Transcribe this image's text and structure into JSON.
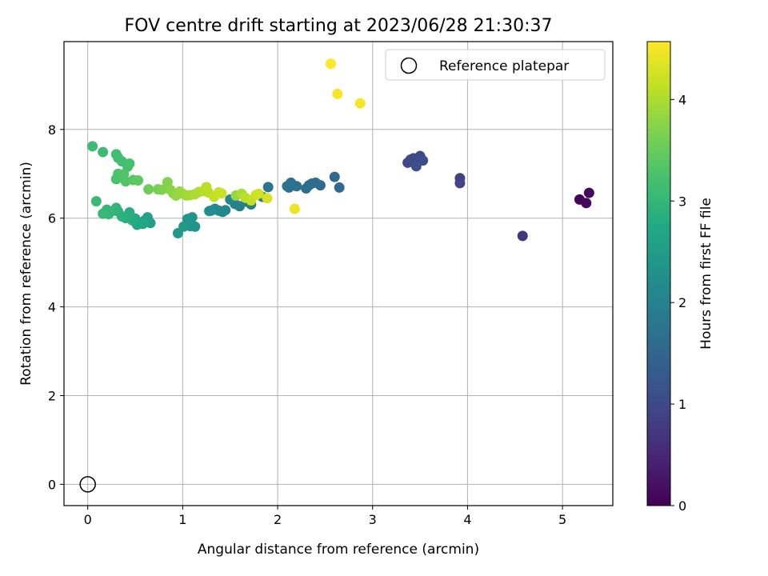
{
  "chart_data": {
    "type": "scatter",
    "title": "FOV centre drift starting at 2023/06/28 21:30:37",
    "xlabel": "Angular distance from reference (arcmin)",
    "ylabel": "Rotation from reference (arcmin)",
    "xlim": [
      -0.25,
      5.53
    ],
    "ylim": [
      -0.48,
      9.98
    ],
    "xticks": [
      0,
      1,
      2,
      3,
      4,
      5
    ],
    "yticks": [
      0,
      2,
      4,
      6,
      8
    ],
    "grid": true,
    "legend": {
      "placement": "top-right",
      "label": "Reference platepar"
    },
    "reference_point": {
      "x": 0.0,
      "y": 0.0
    },
    "colorbar": {
      "label": "Hours from first FF file",
      "colormap": "viridis",
      "range": [
        0,
        4.57
      ],
      "ticks": [
        0,
        1,
        2,
        3,
        4
      ]
    },
    "series": [
      {
        "x": [
          5.18,
          5.25,
          5.28,
          4.58,
          3.92,
          3.92,
          3.37,
          3.4,
          3.43,
          3.46,
          3.5,
          3.53,
          3.46,
          2.65,
          2.6,
          2.45,
          2.4,
          2.36,
          2.33,
          2.3,
          2.2,
          2.14,
          2.12,
          2.1,
          1.9,
          1.84,
          1.72,
          1.67,
          1.6,
          1.55,
          1.5,
          1.45,
          1.42,
          1.38,
          1.34,
          1.3,
          1.28,
          1.13,
          1.1,
          1.08,
          1.05,
          1.01,
          0.95,
          0.66,
          0.63,
          0.6,
          0.58,
          0.55,
          0.52,
          0.5,
          0.47,
          0.44,
          0.4,
          0.36,
          0.32,
          0.3,
          0.26,
          0.22,
          0.2,
          0.16,
          0.09,
          0.05,
          0.16,
          0.3,
          0.32,
          0.36,
          0.42,
          0.44,
          0.3,
          0.32,
          0.35,
          0.38,
          0.4,
          0.48,
          0.53,
          0.64,
          0.74,
          0.78,
          0.84,
          0.87,
          0.9,
          0.93,
          0.97,
          1.0,
          1.04,
          1.08,
          1.13,
          1.17,
          1.22,
          1.25,
          1.27,
          1.33,
          1.38,
          1.41,
          1.56,
          1.62,
          1.66,
          1.72,
          1.77,
          1.8,
          1.89,
          2.18,
          2.56,
          2.63,
          2.87
        ],
        "y": [
          6.42,
          6.34,
          6.57,
          5.6,
          6.9,
          6.79,
          7.25,
          7.32,
          7.35,
          7.27,
          7.4,
          7.3,
          7.17,
          6.69,
          6.93,
          6.74,
          6.8,
          6.78,
          6.74,
          6.67,
          6.72,
          6.8,
          6.69,
          6.72,
          6.7,
          6.48,
          6.31,
          6.37,
          6.27,
          6.32,
          6.42,
          6.18,
          6.14,
          6.17,
          6.21,
          6.17,
          6.16,
          5.81,
          6.02,
          5.82,
          5.98,
          5.81,
          5.66,
          5.89,
          6.02,
          5.95,
          5.87,
          5.9,
          5.85,
          5.99,
          5.95,
          6.13,
          6.0,
          6.04,
          6.15,
          6.23,
          6.16,
          6.09,
          6.19,
          6.1,
          6.38,
          7.62,
          7.49,
          7.44,
          7.36,
          7.28,
          7.16,
          7.23,
          6.88,
          7.0,
          6.96,
          6.99,
          6.83,
          6.86,
          6.85,
          6.65,
          6.65,
          6.64,
          6.81,
          6.64,
          6.56,
          6.51,
          6.6,
          6.55,
          6.51,
          6.52,
          6.54,
          6.59,
          6.61,
          6.7,
          6.58,
          6.48,
          6.58,
          6.56,
          6.51,
          6.55,
          6.46,
          6.4,
          6.52,
          6.55,
          6.45,
          6.21,
          9.48,
          8.8,
          8.59
        ],
        "hours": [
          0.05,
          0.08,
          0.1,
          0.7,
          0.9,
          0.92,
          1.0,
          1.02,
          1.03,
          1.04,
          1.05,
          1.07,
          1.08,
          1.55,
          1.56,
          1.58,
          1.6,
          1.62,
          1.63,
          1.65,
          1.68,
          1.7,
          1.72,
          1.74,
          1.8,
          1.85,
          1.88,
          1.92,
          1.96,
          2.0,
          2.05,
          2.08,
          2.1,
          2.13,
          2.16,
          2.2,
          2.22,
          2.3,
          2.33,
          2.36,
          2.4,
          2.44,
          2.47,
          2.55,
          2.6,
          2.63,
          2.66,
          2.7,
          2.73,
          2.76,
          2.8,
          2.83,
          2.86,
          2.9,
          2.93,
          2.96,
          2.98,
          3.0,
          3.02,
          3.04,
          3.06,
          3.1,
          3.12,
          3.15,
          3.16,
          3.18,
          3.2,
          3.22,
          3.25,
          3.26,
          3.28,
          3.3,
          3.32,
          3.38,
          3.42,
          3.55,
          3.62,
          3.68,
          3.7,
          3.74,
          3.78,
          3.82,
          3.85,
          3.88,
          3.92,
          3.95,
          3.98,
          4.02,
          4.05,
          4.08,
          4.1,
          4.14,
          4.17,
          4.2,
          3.85,
          4.0,
          4.1,
          4.15,
          4.2,
          4.25,
          4.3,
          4.45,
          4.55,
          4.52,
          4.5
        ]
      }
    ]
  }
}
